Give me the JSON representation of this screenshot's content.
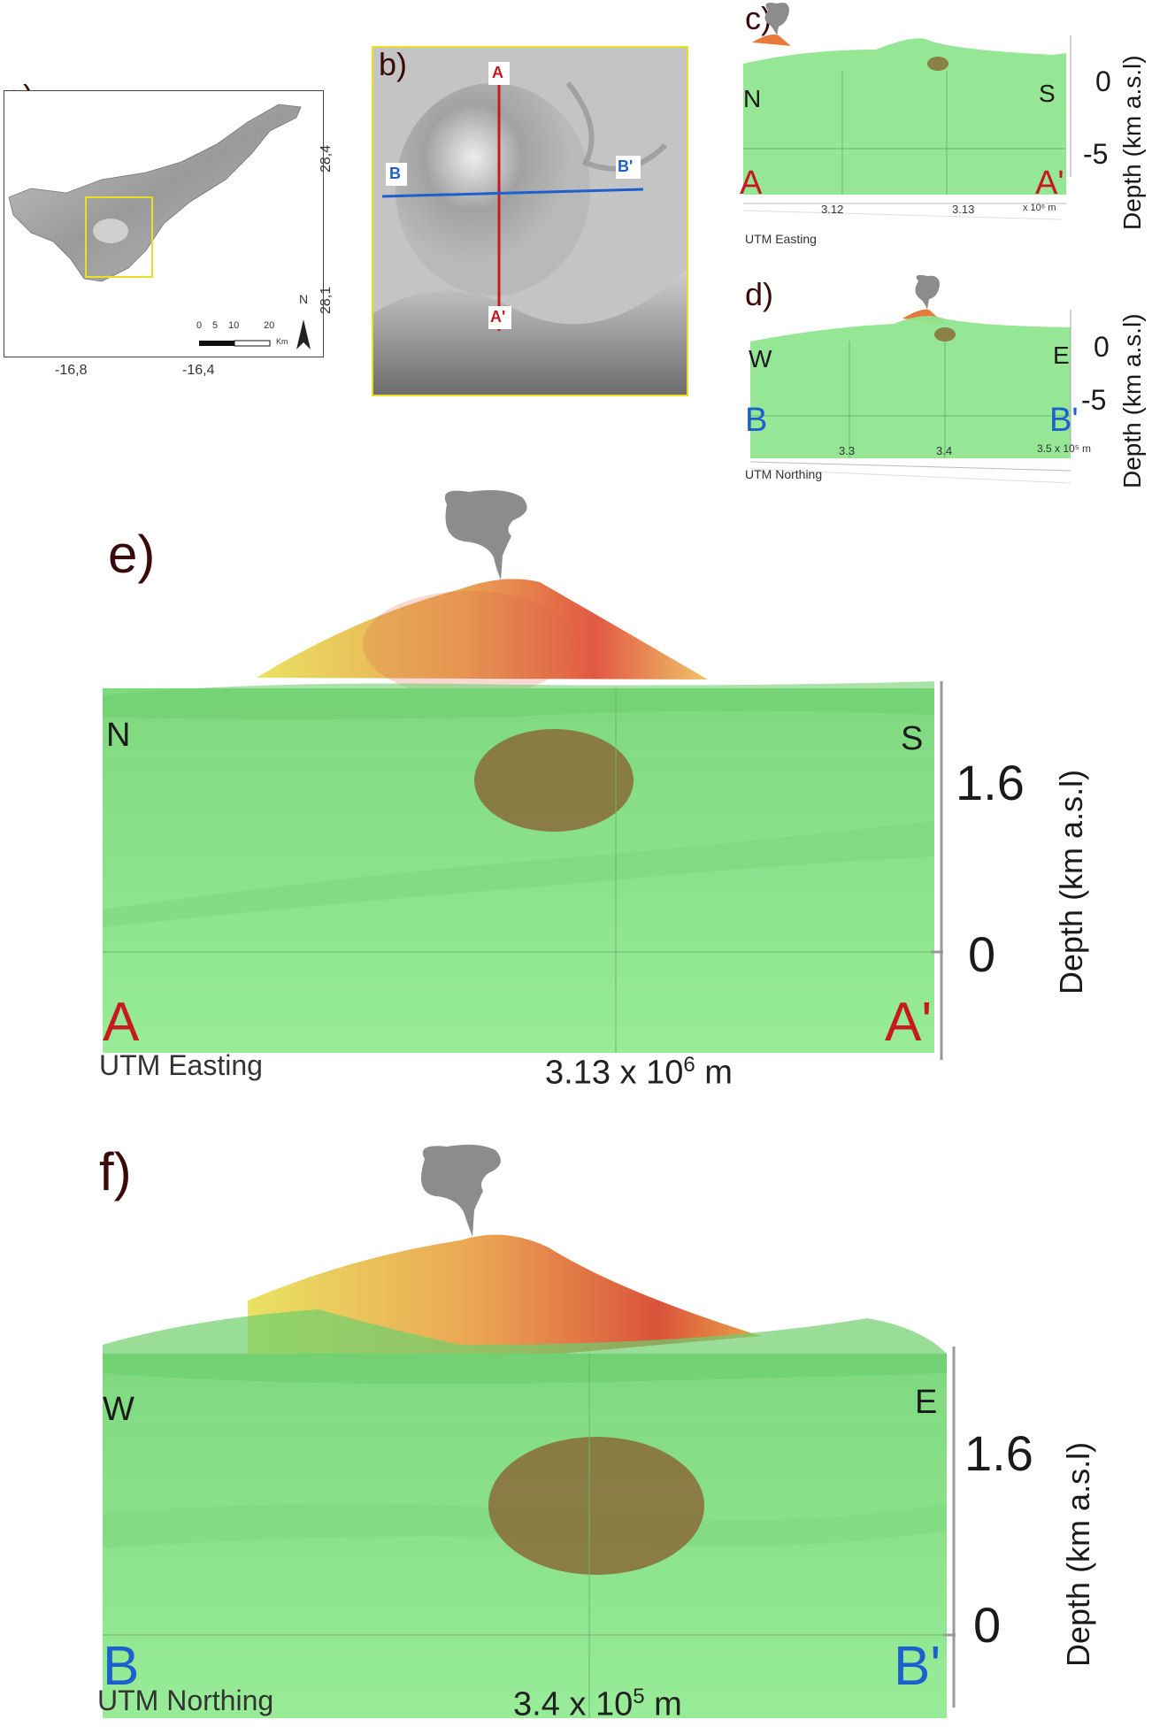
{
  "panels": {
    "a": {
      "label": "a)",
      "lat_ticks": [
        "28,4",
        "28,1"
      ],
      "lon_ticks": [
        "-16,8",
        "-16,4"
      ],
      "scale": {
        "ticks": [
          "0",
          "5",
          "10",
          "20"
        ],
        "unit": "Km"
      },
      "north": "N"
    },
    "b": {
      "label": "b)",
      "markers": {
        "A": "A",
        "A_prime": "A'",
        "B": "B",
        "B_prime": "B'"
      }
    },
    "c": {
      "label": "c)",
      "left_dir": "N",
      "right_dir": "S",
      "left_end": "A",
      "right_end": "A'",
      "x_ticks": [
        "3.12",
        "3.13"
      ],
      "x_unit": "x 10⁶ m",
      "x_axis": "UTM Easting",
      "y_ticks": [
        "0",
        "-5"
      ],
      "y_axis": "Depth (km a.s.l)"
    },
    "d": {
      "label": "d)",
      "left_dir": "W",
      "right_dir": "E",
      "left_end": "B",
      "right_end": "B'",
      "x_ticks": [
        "3.3",
        "3.4"
      ],
      "x_unit": "3.5 x 10⁵ m",
      "x_axis": "UTM Northing",
      "y_ticks": [
        "0",
        "-5"
      ],
      "y_axis": "Depth (km a.s.l)"
    },
    "e": {
      "label": "e)",
      "left_dir": "N",
      "right_dir": "S",
      "left_end": "A",
      "right_end": "A'",
      "x_axis": "UTM Easting",
      "x_tick": {
        "base": "3.13 x 10",
        "exp": "6",
        "unit": " m"
      },
      "y_ticks": [
        "1.6",
        "0"
      ],
      "y_axis": "Depth (km  a.s.l)"
    },
    "f": {
      "label": "f)",
      "left_dir": "W",
      "right_dir": "E",
      "left_end": "B",
      "right_end": "B'",
      "x_axis": "UTM Northing",
      "x_tick": {
        "base": "3.4 x 10",
        "exp": "5",
        "unit": " m"
      },
      "y_ticks": [
        "1.6",
        "0"
      ],
      "y_axis": "Depth (km  a.s.l)"
    }
  },
  "colors": {
    "terrain_green": "#8fe58f",
    "anomaly_brown": "#8a6e3a",
    "section_a_red": "#c8191e",
    "section_b_blue": "#1e5fd0",
    "plume_grey": "#8c8c8c",
    "label_brown": "#3a0a0a"
  }
}
